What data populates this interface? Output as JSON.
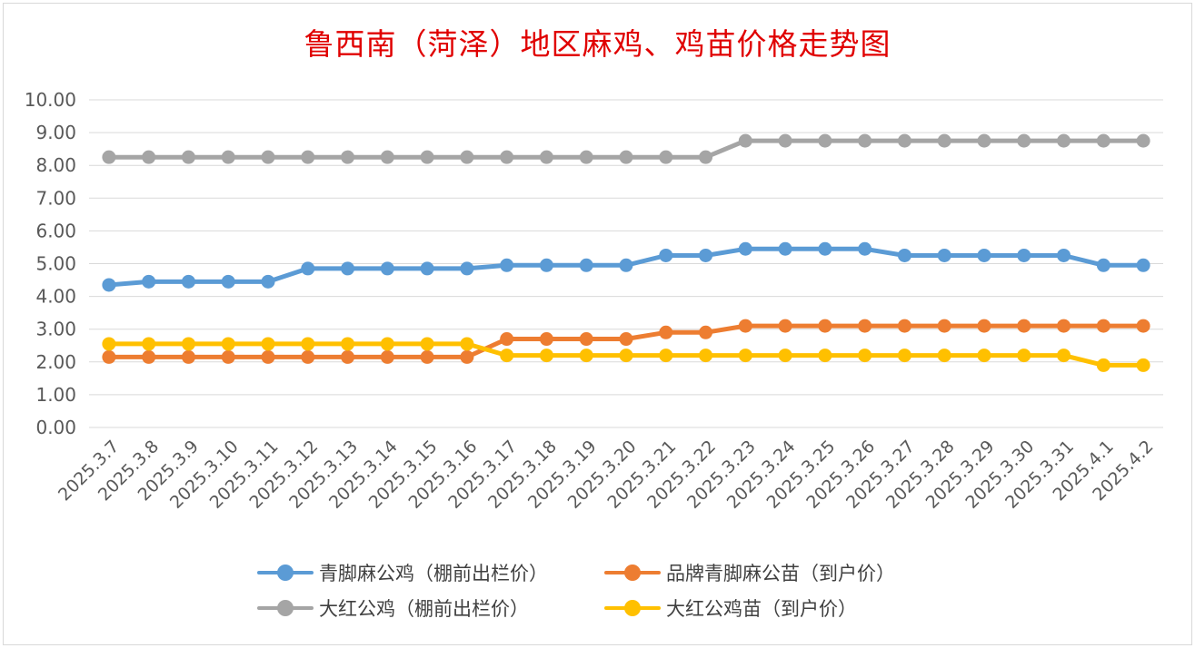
{
  "title": "鲁西南（菏泽）地区麻鸡、鸡苗价格走势图",
  "chart_data": {
    "type": "line",
    "title": "鲁西南（菏泽）地区麻鸡、鸡苗价格走势图",
    "xlabel": "",
    "ylabel": "",
    "ylim": [
      0,
      10
    ],
    "grid": true,
    "legend_position": "bottom",
    "y_ticks": [
      "0.00",
      "1.00",
      "2.00",
      "3.00",
      "4.00",
      "5.00",
      "6.00",
      "7.00",
      "8.00",
      "9.00",
      "10.00"
    ],
    "categories": [
      "2025.3.7",
      "2025.3.8",
      "2025.3.9",
      "2025.3.10",
      "2025.3.11",
      "2025.3.12",
      "2025.3.13",
      "2025.3.14",
      "2025.3.15",
      "2025.3.16",
      "2025.3.17",
      "2025.3.18",
      "2025.3.19",
      "2025.3.20",
      "2025.3.21",
      "2025.3.22",
      "2025.3.23",
      "2025.3.24",
      "2025.3.25",
      "2025.3.26",
      "2025.3.27",
      "2025.3.28",
      "2025.3.29",
      "2025.3.30",
      "2025.3.31",
      "2025.4.1",
      "2025.4.2"
    ],
    "series": [
      {
        "name": "青脚麻公鸡（棚前出栏价）",
        "color": "#5b9bd5",
        "values": [
          4.35,
          4.45,
          4.45,
          4.45,
          4.45,
          4.85,
          4.85,
          4.85,
          4.85,
          4.85,
          4.95,
          4.95,
          4.95,
          4.95,
          5.25,
          5.25,
          5.45,
          5.45,
          5.45,
          5.45,
          5.25,
          5.25,
          5.25,
          5.25,
          5.25,
          4.95,
          4.95
        ]
      },
      {
        "name": "品牌青脚麻公苗（到户价）",
        "color": "#ed7d31",
        "values": [
          2.15,
          2.15,
          2.15,
          2.15,
          2.15,
          2.15,
          2.15,
          2.15,
          2.15,
          2.15,
          2.7,
          2.7,
          2.7,
          2.7,
          2.9,
          2.9,
          3.1,
          3.1,
          3.1,
          3.1,
          3.1,
          3.1,
          3.1,
          3.1,
          3.1,
          3.1,
          3.1
        ]
      },
      {
        "name": "大红公鸡（棚前出栏价）",
        "color": "#a5a5a5",
        "values": [
          8.25,
          8.25,
          8.25,
          8.25,
          8.25,
          8.25,
          8.25,
          8.25,
          8.25,
          8.25,
          8.25,
          8.25,
          8.25,
          8.25,
          8.25,
          8.25,
          8.75,
          8.75,
          8.75,
          8.75,
          8.75,
          8.75,
          8.75,
          8.75,
          8.75,
          8.75,
          8.75
        ]
      },
      {
        "name": "大红公鸡苗（到户价）",
        "color": "#ffc000",
        "values": [
          2.55,
          2.55,
          2.55,
          2.55,
          2.55,
          2.55,
          2.55,
          2.55,
          2.55,
          2.55,
          2.2,
          2.2,
          2.2,
          2.2,
          2.2,
          2.2,
          2.2,
          2.2,
          2.2,
          2.2,
          2.2,
          2.2,
          2.2,
          2.2,
          2.2,
          1.9,
          1.9
        ]
      }
    ]
  }
}
